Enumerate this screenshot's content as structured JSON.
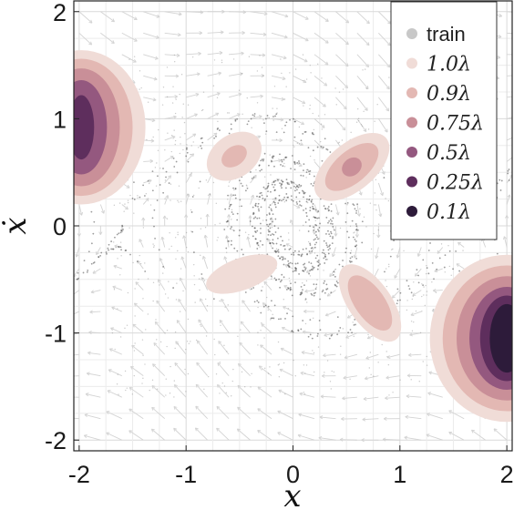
{
  "chart_data": {
    "type": "scatter",
    "title": "",
    "xlabel": "x",
    "ylabel": "ẋ",
    "xlim": [
      -2.05,
      2.05
    ],
    "ylim": [
      -2.1,
      2.1
    ],
    "xticks": [
      -2,
      -1,
      0,
      1,
      2
    ],
    "yticks": [
      -2,
      -1,
      0,
      1,
      2
    ],
    "xtick_labels": [
      "-2",
      "-1",
      "0",
      "1",
      "2"
    ],
    "ytick_labels": [
      "-2",
      "-1",
      "0",
      "1",
      "2"
    ],
    "grid": true,
    "legend_position": "top-right",
    "legend": [
      {
        "label": "train",
        "color": "#c8c8c8"
      },
      {
        "label": "1.0λ",
        "color": "#f0dcd7"
      },
      {
        "label": "0.9λ",
        "color": "#e3b8b3"
      },
      {
        "label": "0.75λ",
        "color": "#c98f98"
      },
      {
        "label": "0.5λ",
        "color": "#94587f"
      },
      {
        "label": "0.25λ",
        "color": "#5e2e5d"
      },
      {
        "label": "0.1λ",
        "color": "#2d1b3a"
      }
    ],
    "contour_regions": [
      {
        "center": [
          -1.98,
          0.92
        ],
        "levels": [
          {
            "label": "1.0λ",
            "rx": 0.6,
            "ry": 0.72
          },
          {
            "label": "0.9λ",
            "rx": 0.48,
            "ry": 0.64
          },
          {
            "label": "0.75λ",
            "rx": 0.36,
            "ry": 0.55
          },
          {
            "label": "0.5λ",
            "rx": 0.24,
            "ry": 0.44
          },
          {
            "label": "0.25λ",
            "rx": 0.12,
            "ry": 0.3
          }
        ]
      },
      {
        "center": [
          2.0,
          -1.05
        ],
        "levels": [
          {
            "label": "1.0λ",
            "rx": 0.72,
            "ry": 0.78
          },
          {
            "label": "0.9λ",
            "rx": 0.6,
            "ry": 0.68
          },
          {
            "label": "0.75λ",
            "rx": 0.47,
            "ry": 0.58
          },
          {
            "label": "0.5λ",
            "rx": 0.35,
            "ry": 0.48
          },
          {
            "label": "0.25λ",
            "rx": 0.25,
            "ry": 0.4
          },
          {
            "label": "0.1λ",
            "rx": 0.16,
            "ry": 0.32
          }
        ]
      },
      {
        "center": [
          -0.55,
          0.65
        ],
        "angle": -35,
        "levels": [
          {
            "label": "1.0λ",
            "rx": 0.28,
            "ry": 0.2
          },
          {
            "label": "0.9λ",
            "rx": 0.13,
            "ry": 0.09
          }
        ]
      },
      {
        "center": [
          0.55,
          0.55
        ],
        "angle": -40,
        "levels": [
          {
            "label": "1.0λ",
            "rx": 0.42,
            "ry": 0.22
          },
          {
            "label": "0.9λ",
            "rx": 0.3,
            "ry": 0.15
          },
          {
            "label": "0.75λ",
            "rx": 0.1,
            "ry": 0.08
          }
        ]
      },
      {
        "center": [
          -0.48,
          -0.45
        ],
        "angle": -20,
        "levels": [
          {
            "label": "1.0λ",
            "rx": 0.35,
            "ry": 0.15
          }
        ]
      },
      {
        "center": [
          0.72,
          -0.72
        ],
        "angle": 55,
        "levels": [
          {
            "label": "1.0λ",
            "rx": 0.42,
            "ry": 0.2
          },
          {
            "label": "0.9λ",
            "rx": 0.3,
            "ry": 0.14
          }
        ]
      }
    ]
  }
}
